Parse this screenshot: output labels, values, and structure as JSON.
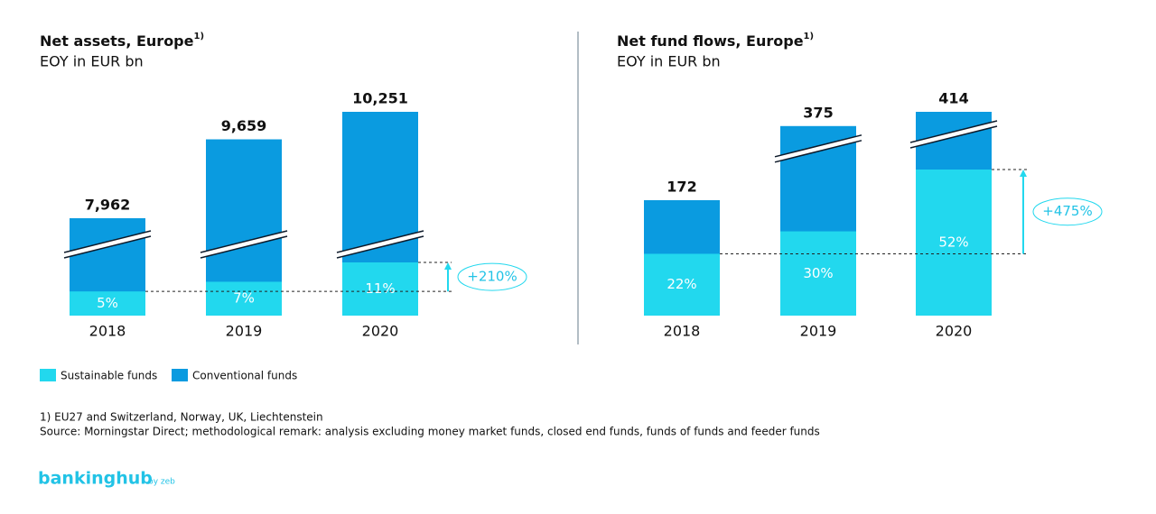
{
  "chart_data": [
    {
      "type": "bar",
      "title": "Net assets, Europe",
      "title_note": "1)",
      "subtitle": "EOY in EUR bn",
      "categories": [
        "2018",
        "2019",
        "2020"
      ],
      "series": [
        {
          "name": "Sustainable funds",
          "color": "#22d8ee",
          "values": [
            5,
            7,
            11
          ],
          "value_labels": [
            "5%",
            "7%",
            "11%"
          ]
        }
      ],
      "totals": {
        "name": "Conventional funds",
        "color": "#0a9be0",
        "values": [
          7962,
          9659,
          10251
        ],
        "value_labels": [
          "7,962",
          "9,659",
          "10,251"
        ]
      },
      "annotation": "+210%"
    },
    {
      "type": "bar",
      "title": "Net fund flows, Europe",
      "title_note": "1)",
      "subtitle": "EOY in EUR bn",
      "categories": [
        "2018",
        "2019",
        "2020"
      ],
      "series": [
        {
          "name": "Sustainable funds",
          "color": "#22d8ee",
          "values": [
            22,
            30,
            52
          ],
          "value_labels": [
            "22%",
            "30%",
            "52%"
          ]
        }
      ],
      "totals": {
        "name": "Conventional funds",
        "color": "#0a9be0",
        "values": [
          172,
          375,
          414
        ],
        "value_labels": [
          "172",
          "375",
          "414"
        ]
      },
      "annotation": "+475%"
    }
  ],
  "footnotes": [
    "1) EU27 and Switzerland, Norway, UK, Liechtenstein",
    "Source: Morningstar Direct; methodological remark: analysis excluding money market funds, closed end funds, funds of funds and feeder funds"
  ],
  "logo": {
    "name": "bankinghub",
    "tag": "by zeb"
  }
}
